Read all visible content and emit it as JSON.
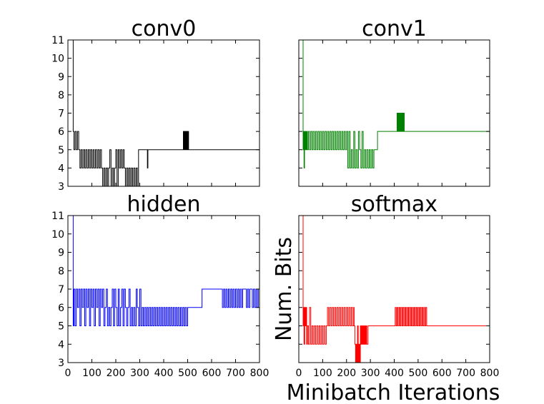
{
  "chart_data": [
    {
      "type": "line",
      "title": "conv0",
      "color": "#000000",
      "xlim": [
        0,
        800
      ],
      "ylim": [
        3,
        11
      ],
      "show_y_ticklabels": true,
      "show_x_ticklabels": false,
      "x": [
        0,
        18,
        22,
        25,
        30,
        35,
        40,
        45,
        50,
        55,
        60,
        65,
        70,
        75,
        80,
        85,
        90,
        95,
        100,
        105,
        110,
        115,
        120,
        125,
        130,
        135,
        140,
        145,
        150,
        155,
        160,
        165,
        170,
        175,
        180,
        185,
        190,
        195,
        200,
        205,
        210,
        215,
        220,
        225,
        230,
        235,
        240,
        245,
        250,
        255,
        260,
        265,
        270,
        275,
        280,
        285,
        290,
        295,
        300,
        330,
        332,
        334,
        336,
        480,
        482,
        484,
        486,
        488,
        490,
        492,
        494,
        496,
        498,
        500,
        502,
        504,
        506,
        800
      ],
      "values": [
        11,
        11,
        6,
        5,
        6,
        5,
        6,
        5,
        4,
        5,
        4,
        5,
        4,
        5,
        4,
        5,
        4,
        5,
        4,
        5,
        4,
        5,
        4,
        5,
        4,
        5,
        4,
        3,
        4,
        3,
        4,
        3,
        4,
        5,
        3,
        4,
        3,
        4,
        5,
        3,
        5,
        4,
        5,
        4,
        5,
        4,
        3,
        4,
        3,
        4,
        3,
        4,
        3,
        4,
        3,
        4,
        3,
        5,
        5,
        5,
        4,
        5,
        5,
        5,
        6,
        5,
        6,
        5,
        6,
        5,
        6,
        5,
        6,
        5,
        6,
        5,
        5,
        5
      ]
    },
    {
      "type": "line",
      "title": "conv1",
      "color": "#008000",
      "xlim": [
        0,
        800
      ],
      "ylim": [
        3,
        11
      ],
      "show_y_ticklabels": false,
      "show_x_ticklabels": false,
      "x": [
        0,
        14,
        18,
        20,
        22,
        24,
        26,
        28,
        30,
        33,
        36,
        40,
        45,
        50,
        55,
        60,
        65,
        70,
        75,
        80,
        85,
        90,
        95,
        100,
        105,
        110,
        115,
        120,
        125,
        130,
        135,
        140,
        145,
        150,
        155,
        160,
        165,
        170,
        175,
        180,
        185,
        190,
        195,
        200,
        205,
        210,
        215,
        220,
        225,
        230,
        235,
        240,
        245,
        250,
        255,
        260,
        265,
        270,
        275,
        280,
        285,
        290,
        295,
        300,
        305,
        310,
        315,
        320,
        330,
        410,
        412,
        414,
        416,
        418,
        420,
        422,
        424,
        426,
        428,
        430,
        432,
        434,
        436,
        438,
        440,
        442,
        800
      ],
      "values": [
        11,
        11,
        5,
        6,
        4,
        6,
        5,
        6,
        5,
        6,
        5,
        6,
        5,
        6,
        5,
        6,
        5,
        6,
        5,
        6,
        5,
        6,
        5,
        6,
        5,
        6,
        5,
        6,
        5,
        6,
        5,
        6,
        5,
        6,
        5,
        6,
        5,
        6,
        5,
        6,
        5,
        6,
        5,
        6,
        4,
        6,
        4,
        5,
        4,
        6,
        4,
        5,
        4,
        6,
        5,
        4,
        6,
        4,
        5,
        4,
        5,
        4,
        5,
        4,
        5,
        4,
        5,
        5,
        6,
        6,
        7,
        6,
        7,
        6,
        7,
        6,
        7,
        6,
        7,
        6,
        7,
        6,
        7,
        6,
        7,
        6,
        6
      ]
    },
    {
      "type": "line",
      "title": "hidden",
      "color": "#0000ff",
      "xlim": [
        0,
        800
      ],
      "ylim": [
        3,
        11
      ],
      "show_y_ticklabels": true,
      "show_x_ticklabels": true,
      "x": [
        0,
        18,
        22,
        25,
        30,
        35,
        40,
        45,
        50,
        55,
        60,
        65,
        70,
        75,
        80,
        85,
        90,
        95,
        100,
        105,
        110,
        115,
        120,
        125,
        130,
        135,
        140,
        145,
        150,
        155,
        160,
        165,
        170,
        175,
        180,
        185,
        190,
        195,
        200,
        205,
        210,
        215,
        220,
        225,
        230,
        235,
        240,
        245,
        250,
        255,
        260,
        265,
        270,
        275,
        280,
        285,
        290,
        295,
        300,
        305,
        310,
        315,
        320,
        325,
        330,
        335,
        340,
        345,
        350,
        355,
        360,
        365,
        370,
        375,
        380,
        385,
        390,
        395,
        400,
        405,
        410,
        415,
        420,
        425,
        430,
        435,
        440,
        445,
        450,
        455,
        460,
        465,
        470,
        475,
        480,
        485,
        490,
        495,
        500,
        505,
        510,
        520,
        540,
        560,
        565,
        640,
        645,
        650,
        655,
        660,
        665,
        670,
        675,
        680,
        685,
        690,
        695,
        700,
        705,
        710,
        715,
        720,
        725,
        730,
        735,
        740,
        745,
        750,
        755,
        760,
        765,
        770,
        775,
        780,
        785,
        790,
        795,
        800
      ],
      "values": [
        11,
        11,
        5,
        7,
        5,
        7,
        6,
        7,
        5,
        7,
        6,
        7,
        5,
        7,
        6,
        7,
        5,
        7,
        6,
        7,
        5,
        7,
        6,
        7,
        5,
        7,
        6,
        7,
        5,
        6,
        7,
        5,
        6,
        5,
        6,
        7,
        5,
        7,
        6,
        5,
        7,
        5,
        6,
        7,
        5,
        7,
        6,
        5,
        6,
        7,
        5,
        6,
        5,
        6,
        5,
        7,
        6,
        5,
        7,
        5,
        6,
        5,
        6,
        5,
        6,
        5,
        6,
        5,
        6,
        5,
        6,
        5,
        6,
        5,
        6,
        5,
        6,
        5,
        6,
        5,
        6,
        5,
        6,
        5,
        6,
        5,
        6,
        5,
        6,
        5,
        6,
        5,
        6,
        5,
        6,
        5,
        6,
        5,
        6,
        6,
        6,
        6,
        6,
        7,
        7,
        7,
        6,
        7,
        6,
        7,
        6,
        7,
        6,
        7,
        6,
        7,
        6,
        7,
        6,
        7,
        6,
        7,
        6,
        7,
        7,
        7,
        6,
        7,
        6,
        7,
        7,
        6,
        7,
        6,
        7,
        6,
        7,
        7
      ]
    },
    {
      "type": "line",
      "title": "softmax",
      "color": "#ff0000",
      "xlim": [
        0,
        800
      ],
      "ylim": [
        3,
        11
      ],
      "show_y_ticklabels": false,
      "show_x_ticklabels": true,
      "x": [
        0,
        14,
        18,
        20,
        22,
        25,
        28,
        30,
        33,
        36,
        40,
        45,
        50,
        55,
        60,
        65,
        70,
        75,
        80,
        85,
        90,
        95,
        100,
        105,
        110,
        115,
        120,
        125,
        130,
        135,
        140,
        145,
        150,
        155,
        160,
        165,
        170,
        175,
        180,
        185,
        190,
        195,
        200,
        205,
        210,
        215,
        220,
        225,
        230,
        232,
        235,
        238,
        240,
        243,
        246,
        249,
        252,
        255,
        258,
        261,
        264,
        267,
        270,
        273,
        276,
        279,
        282,
        285,
        290,
        400,
        404,
        408,
        412,
        416,
        420,
        424,
        428,
        432,
        436,
        440,
        444,
        448,
        452,
        456,
        460,
        464,
        468,
        472,
        476,
        480,
        484,
        488,
        492,
        496,
        500,
        504,
        508,
        512,
        516,
        520,
        524,
        528,
        532,
        536,
        540,
        800
      ],
      "values": [
        11,
        11,
        5,
        6,
        4,
        6,
        5,
        6,
        4,
        5,
        4,
        6,
        4,
        5,
        4,
        5,
        4,
        5,
        4,
        5,
        4,
        5,
        4,
        5,
        4,
        5,
        6,
        5,
        6,
        5,
        6,
        5,
        6,
        5,
        6,
        5,
        6,
        5,
        6,
        5,
        6,
        5,
        6,
        5,
        6,
        5,
        6,
        5,
        6,
        5,
        4,
        3,
        4,
        3,
        5,
        3,
        4,
        3,
        5,
        4,
        5,
        4,
        5,
        4,
        5,
        4,
        5,
        4,
        5,
        5,
        6,
        5,
        6,
        5,
        6,
        5,
        6,
        5,
        6,
        5,
        6,
        5,
        6,
        5,
        6,
        5,
        6,
        5,
        6,
        5,
        6,
        5,
        6,
        5,
        6,
        5,
        6,
        5,
        6,
        5,
        6,
        5,
        6,
        5,
        5,
        5
      ]
    }
  ],
  "axes": {
    "xlabel": "Minibatch Iterations",
    "ylabel": "Num. Bits",
    "x_ticks": [
      0,
      100,
      200,
      300,
      400,
      500,
      600,
      700,
      800
    ],
    "x_tick_labels": [
      "0",
      "100",
      "200",
      "300",
      "400",
      "500",
      "600",
      "700",
      "800"
    ],
    "y_ticks": [
      3,
      4,
      5,
      6,
      7,
      8,
      9,
      10,
      11
    ],
    "y_tick_labels": [
      "3",
      "4",
      "5",
      "6",
      "7",
      "8",
      "9",
      "10",
      "11"
    ]
  }
}
